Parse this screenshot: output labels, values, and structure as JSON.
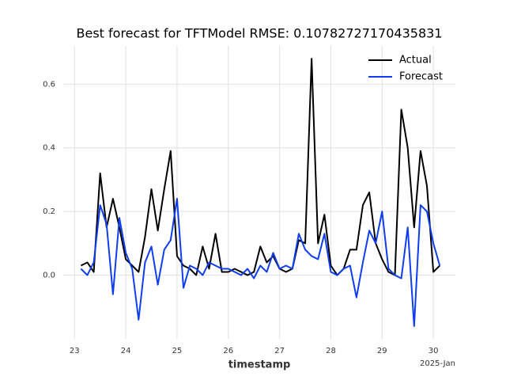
{
  "chart_data": {
    "type": "line",
    "title": "Best forecast for TFTModel RMSE: 0.10782727170435831",
    "x_label": "timestamp",
    "x_offset_label": "2025-Jan",
    "x": [
      23.125,
      23.25,
      23.375,
      23.5,
      23.625,
      23.75,
      23.875,
      24,
      24.125,
      24.25,
      24.375,
      24.5,
      24.625,
      24.75,
      24.875,
      25,
      25.125,
      25.25,
      25.375,
      25.5,
      25.625,
      25.75,
      25.875,
      26,
      26.125,
      26.25,
      26.375,
      26.5,
      26.625,
      26.75,
      26.875,
      27,
      27.125,
      27.25,
      27.375,
      27.5,
      27.625,
      27.75,
      27.875,
      28,
      28.125,
      28.25,
      28.375,
      28.5,
      28.625,
      28.75,
      28.875,
      29,
      29.125,
      29.25,
      29.375,
      29.5,
      29.625,
      29.75,
      29.875,
      30,
      30.125
    ],
    "series": [
      {
        "name": "Actual",
        "color": "#000000",
        "values": [
          0.03,
          0.04,
          0.01,
          0.32,
          0.15,
          0.24,
          0.15,
          0.05,
          0.03,
          0.01,
          0.12,
          0.27,
          0.14,
          0.27,
          0.39,
          0.06,
          0.03,
          0.02,
          0.0,
          0.09,
          0.02,
          0.13,
          0.01,
          0.01,
          0.02,
          0.01,
          0.0,
          0.01,
          0.09,
          0.04,
          0.06,
          0.02,
          0.01,
          0.02,
          0.11,
          0.1,
          0.68,
          0.1,
          0.19,
          0.03,
          0.0,
          0.02,
          0.08,
          0.08,
          0.22,
          0.26,
          0.1,
          0.05,
          0.01,
          0.0,
          0.52,
          0.4,
          0.15,
          0.39,
          0.28,
          0.01,
          0.03
        ]
      },
      {
        "name": "Forecast",
        "color": "#0e3ef0",
        "values": [
          0.02,
          0.0,
          0.04,
          0.22,
          0.16,
          -0.06,
          0.18,
          0.07,
          0.02,
          -0.14,
          0.04,
          0.09,
          -0.03,
          0.08,
          0.11,
          0.24,
          -0.04,
          0.03,
          0.02,
          0.0,
          0.04,
          0.03,
          0.02,
          0.02,
          0.01,
          0.0,
          0.02,
          -0.01,
          0.03,
          0.01,
          0.07,
          0.02,
          0.03,
          0.02,
          0.13,
          0.08,
          0.06,
          0.05,
          0.13,
          0.01,
          0.0,
          0.02,
          0.03,
          -0.07,
          0.04,
          0.14,
          0.1,
          0.2,
          0.02,
          0.0,
          -0.01,
          0.15,
          -0.16,
          0.22,
          0.2,
          0.1,
          0.03
        ]
      }
    ],
    "xlim": [
      22.78,
      30.43
    ],
    "xticks": [
      23,
      24,
      25,
      26,
      27,
      28,
      29,
      30
    ],
    "ylim": [
      -0.2,
      0.72
    ],
    "yticks": [
      {
        "value": 0,
        "label": "0.0"
      },
      0.2,
      0.4,
      0.6
    ],
    "grid": true,
    "legend": "upper right"
  }
}
